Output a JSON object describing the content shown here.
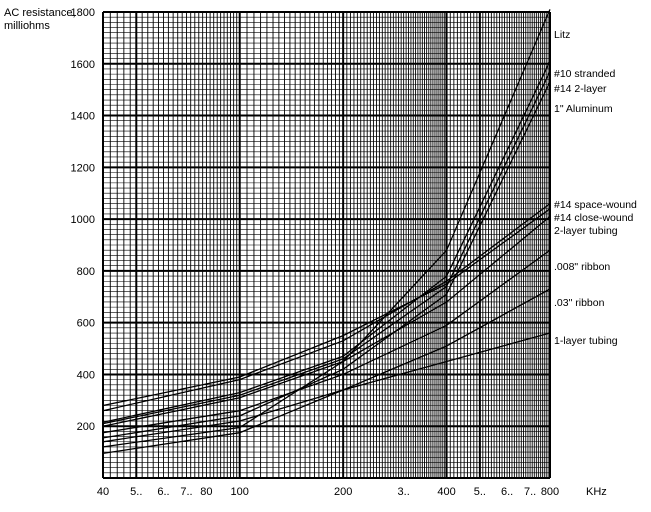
{
  "chart_data": {
    "type": "line",
    "title": "",
    "ylabel_lines": [
      "AC resistance,",
      "milliohms"
    ],
    "xlabel": "KHz",
    "x_scale": "log",
    "xlim": [
      40,
      800
    ],
    "ylim": [
      0,
      1800
    ],
    "x_tick_labels": [
      {
        "x": 40,
        "label": "40"
      },
      {
        "x": 50,
        "label": "5.."
      },
      {
        "x": 60,
        "label": "6.."
      },
      {
        "x": 70,
        "label": "7.."
      },
      {
        "x": 80,
        "label": "80"
      },
      {
        "x": 100,
        "label": "100"
      },
      {
        "x": 200,
        "label": "200"
      },
      {
        "x": 300,
        "label": "3.."
      },
      {
        "x": 400,
        "label": "400"
      },
      {
        "x": 500,
        "label": "5.."
      },
      {
        "x": 600,
        "label": "6.."
      },
      {
        "x": 700,
        "label": "7.."
      },
      {
        "x": 800,
        "label": "800"
      }
    ],
    "y_ticks": [
      200,
      400,
      600,
      800,
      1000,
      1200,
      1400,
      1600,
      1800
    ],
    "grid": true,
    "legend": "labels-at-line-ends-right",
    "series": [
      {
        "name": "Litz",
        "x": [
          40,
          100,
          200,
          400,
          800
        ],
        "y": [
          120,
          195,
          450,
          880,
          1810
        ]
      },
      {
        "name": "#10 stranded",
        "x": [
          40,
          100,
          200,
          400,
          800
        ],
        "y": [
          215,
          330,
          470,
          780,
          1610
        ]
      },
      {
        "name": "#14 2-layer",
        "x": [
          40,
          100,
          200,
          400,
          800
        ],
        "y": [
          210,
          320,
          460,
          740,
          1570
        ]
      },
      {
        "name": "1\" Aluminum",
        "x": [
          40,
          100,
          200,
          400,
          800
        ],
        "y": [
          155,
          240,
          420,
          710,
          1530
        ]
      },
      {
        "name": "#14 space-wound",
        "x": [
          40,
          100,
          200,
          400,
          800
        ],
        "y": [
          260,
          380,
          530,
          760,
          1060
        ]
      },
      {
        "name": "#14 close-wound",
        "x": [
          40,
          100,
          200,
          400,
          800
        ],
        "y": [
          280,
          390,
          550,
          750,
          1040
        ]
      },
      {
        "name": "2-layer tubing",
        "x": [
          40,
          100,
          200,
          400,
          800
        ],
        "y": [
          200,
          310,
          450,
          680,
          1010
        ]
      },
      {
        "name": ".008\" ribbon",
        "x": [
          40,
          100,
          200,
          400,
          800
        ],
        "y": [
          175,
          260,
          400,
          590,
          880
        ]
      },
      {
        "name": ".03\" ribbon",
        "x": [
          40,
          100,
          200,
          400,
          800
        ],
        "y": [
          140,
          220,
          340,
          510,
          730
        ]
      },
      {
        "name": "1-layer tubing",
        "x": [
          40,
          100,
          200,
          400,
          800
        ],
        "y": [
          95,
          175,
          340,
          450,
          560
        ]
      }
    ]
  }
}
